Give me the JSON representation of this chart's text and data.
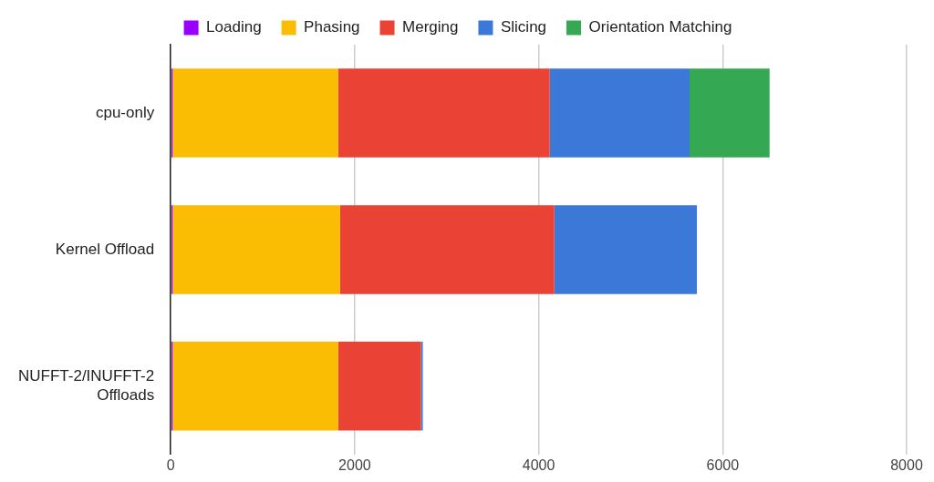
{
  "chart_data": {
    "type": "bar",
    "orientation": "horizontal",
    "stacked": true,
    "categories": [
      "cpu-only",
      "Kernel Offload",
      "NUFFT-2/INUFFT-2 Offloads"
    ],
    "series": [
      {
        "name": "Loading",
        "color": "#9900ff",
        "values": [
          20,
          20,
          20
        ]
      },
      {
        "name": "Phasing",
        "color": "#fbbc04",
        "values": [
          1800,
          1820,
          1800
        ]
      },
      {
        "name": "Merging",
        "color": "#ea4335",
        "values": [
          2300,
          2330,
          900
        ]
      },
      {
        "name": "Slicing",
        "color": "#3c78d8",
        "values": [
          1520,
          1550,
          20
        ]
      },
      {
        "name": "Orientation Matching",
        "color": "#34a853",
        "values": [
          870,
          null,
          null
        ]
      }
    ],
    "xlim": [
      0,
      8000
    ],
    "xticks": [
      0,
      2000,
      4000,
      6000,
      8000
    ],
    "grid": "x",
    "legend": "top"
  }
}
